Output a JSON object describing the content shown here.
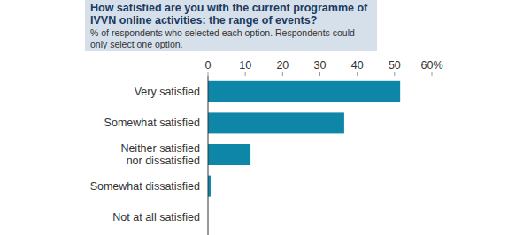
{
  "chart_data": {
    "type": "bar",
    "orientation": "horizontal",
    "title": "How satisfied are you with the current programme of IVVN online activities: the range of events?",
    "subtitle": "% of respondents who selected each option. Respondents could only select one option.",
    "categories": [
      "Very satisfied",
      "Somewhat satisfied",
      "Neither satisfied nor dissatisfied",
      "Somewhat dissatisfied",
      "Not at all satisfied"
    ],
    "values": [
      51.5,
      36.5,
      11.4,
      0.7,
      0
    ],
    "color": "#0e86a8",
    "xlim": [
      0,
      60
    ],
    "xticks": [
      0,
      10,
      20,
      30,
      40,
      50,
      {
        "value": 60,
        "label": "60%"
      }
    ],
    "grid": false
  }
}
